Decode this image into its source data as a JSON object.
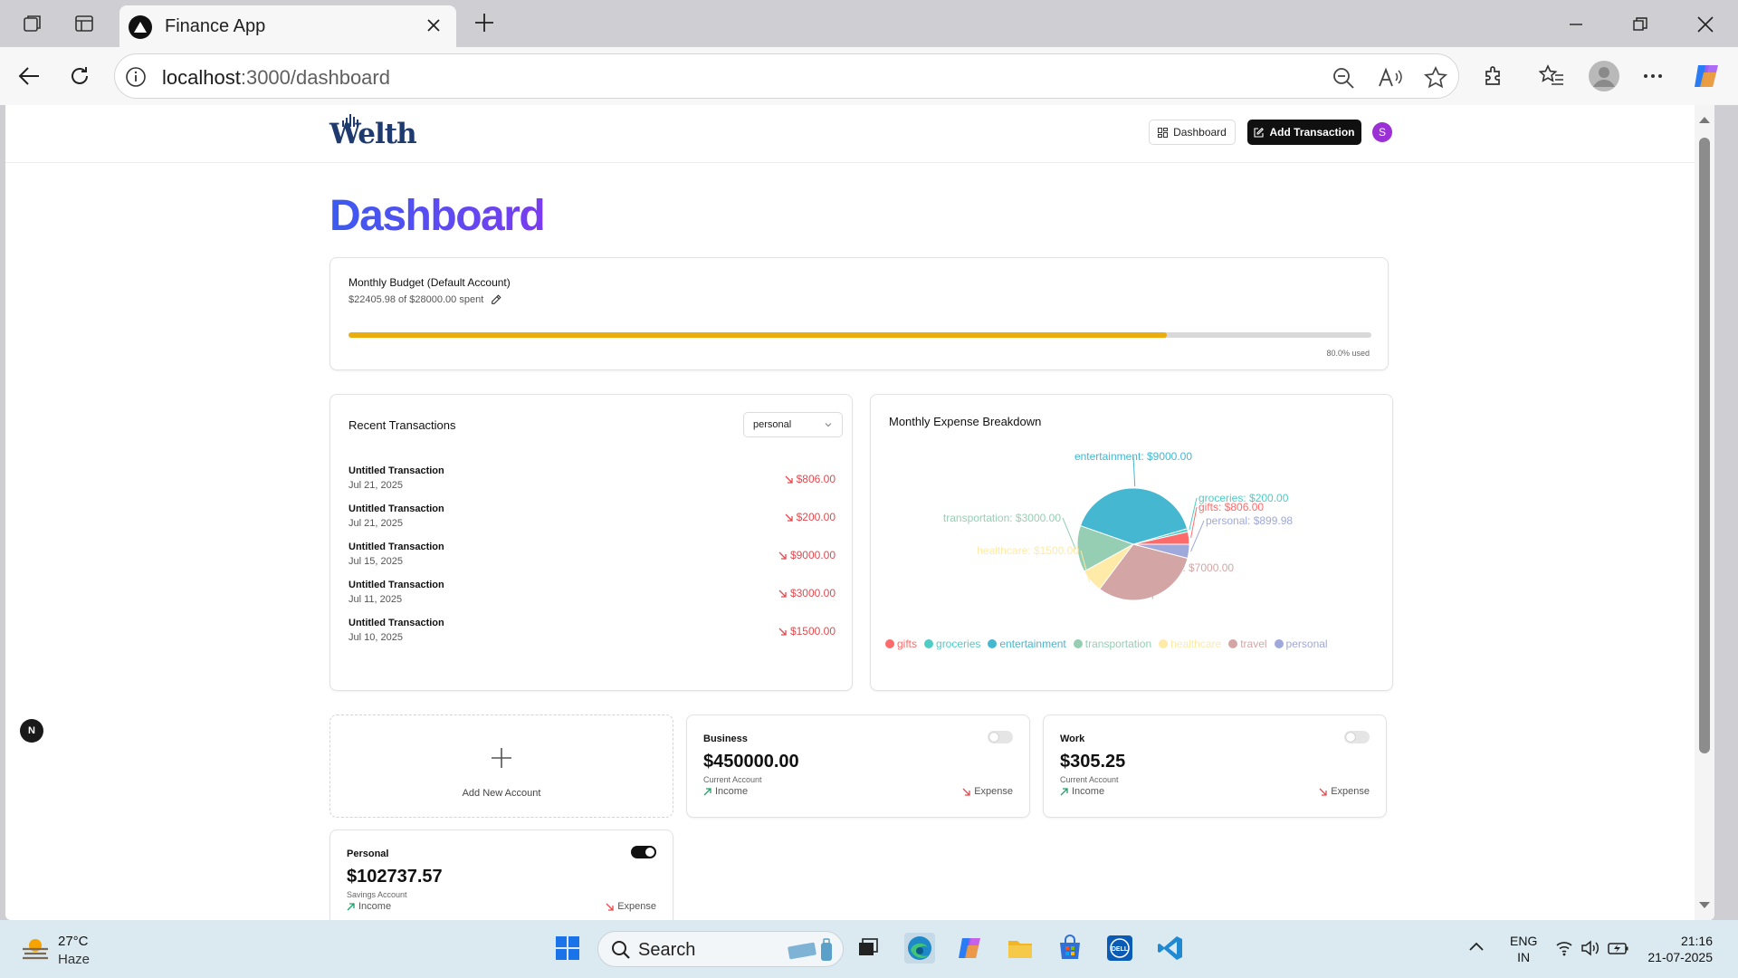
{
  "browser": {
    "tab_title": "Finance App",
    "url_host": "localhost",
    "url_path": ":3000/dashboard"
  },
  "header": {
    "logo": "Welth",
    "dashboard_btn": "Dashboard",
    "add_transaction_btn": "Add Transaction",
    "avatar_initial": "S"
  },
  "page": {
    "title": "Dashboard"
  },
  "budget": {
    "title": "Monthly Budget (Default Account)",
    "spent_text": "$22405.98 of $28000.00 spent",
    "used_text": "80.0% used",
    "used_fraction": 0.8,
    "bar_color": "#e9ad0e"
  },
  "recent": {
    "title": "Recent Transactions",
    "account_filter": "personal",
    "transactions": [
      {
        "name": "Untitled Transaction",
        "date": "Jul 21, 2025",
        "amount": "$806.00"
      },
      {
        "name": "Untitled Transaction",
        "date": "Jul 21, 2025",
        "amount": "$200.00"
      },
      {
        "name": "Untitled Transaction",
        "date": "Jul 15, 2025",
        "amount": "$9000.00"
      },
      {
        "name": "Untitled Transaction",
        "date": "Jul 11, 2025",
        "amount": "$3000.00"
      },
      {
        "name": "Untitled Transaction",
        "date": "Jul 10, 2025",
        "amount": "$1500.00"
      }
    ]
  },
  "chart_data": {
    "type": "pie",
    "title": "Monthly Expense Breakdown",
    "slices": [
      {
        "name": "gifts",
        "value": 806.0,
        "label": "gifts: $806.00",
        "color": "#ff6b6b"
      },
      {
        "name": "groceries",
        "value": 200.0,
        "label": "groceries: $200.00",
        "color": "#4ecdc4"
      },
      {
        "name": "entertainment",
        "value": 9000.0,
        "label": "entertainment: $9000.00",
        "color": "#45b7d1"
      },
      {
        "name": "transportation",
        "value": 3000.0,
        "label": "transportation: $3000.00",
        "color": "#96ceb4"
      },
      {
        "name": "healthcare",
        "value": 1500.0,
        "label": "healthcare: $1500.00",
        "color": "#ffeaa7"
      },
      {
        "name": "travel",
        "value": 7000.0,
        "label": "travel: $7000.00",
        "color": "#d4a5a5"
      },
      {
        "name": "personal",
        "value": 899.98,
        "label": "personal: $899.98",
        "color": "#9fa8da"
      }
    ],
    "legend_position": "bottom"
  },
  "accounts": {
    "add_label": "Add New Account",
    "income_label": "Income",
    "expense_label": "Expense",
    "items": [
      {
        "name": "Business",
        "balance": "$450000.00",
        "type": "Current Account",
        "default": false
      },
      {
        "name": "Work",
        "balance": "$305.25",
        "type": "Current Account",
        "default": false
      },
      {
        "name": "Personal",
        "balance": "$102737.57",
        "type": "Savings Account",
        "default": true
      }
    ]
  },
  "nextjs_badge": "N",
  "taskbar": {
    "temperature": "27°C",
    "condition": "Haze",
    "search_label": "Search",
    "lang_line1": "ENG",
    "lang_line2": "IN",
    "time": "21:16",
    "date": "21-07-2025"
  }
}
